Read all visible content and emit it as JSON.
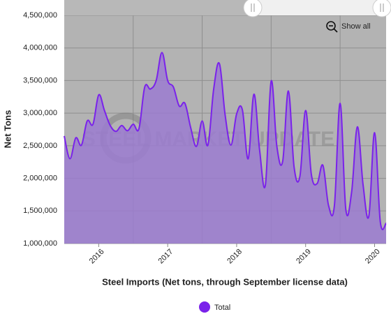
{
  "chart_data": {
    "type": "area",
    "y_label": "Net Tons",
    "x_label": "Steel Imports (Net tons, through September license data)",
    "reset_button": "Show all",
    "watermark": "STEEL MARKET UPDATE",
    "x": [
      2016,
      2016.083,
      2016.167,
      2016.25,
      2016.333,
      2016.417,
      2016.5,
      2016.583,
      2016.667,
      2016.75,
      2016.833,
      2016.917,
      2017,
      2017.083,
      2017.167,
      2017.25,
      2017.333,
      2017.417,
      2017.5,
      2017.583,
      2017.667,
      2017.75,
      2017.833,
      2017.917,
      2018,
      2018.083,
      2018.167,
      2018.25,
      2018.333,
      2018.417,
      2018.5,
      2018.583,
      2018.667,
      2018.75,
      2018.833,
      2018.917,
      2019,
      2019.083,
      2019.167,
      2019.25,
      2019.333,
      2019.417,
      2019.5,
      2019.583,
      2019.667,
      2019.75,
      2019.833,
      2019.917,
      2020,
      2020.083,
      2020.167,
      2020.25,
      2020.333,
      2020.417,
      2020.5,
      2020.583,
      2020.667
    ],
    "series": [
      {
        "name": "Total",
        "color": "#7a22ea",
        "fill": "#9b7bd0",
        "values": [
          2650000,
          2300000,
          2620000,
          2510000,
          2880000,
          2830000,
          3280000,
          3040000,
          2810000,
          2720000,
          2810000,
          2730000,
          2830000,
          2760000,
          3400000,
          3370000,
          3500000,
          3930000,
          3500000,
          3400000,
          3110000,
          3150000,
          2780000,
          2490000,
          2880000,
          2510000,
          3370000,
          3760000,
          2970000,
          2510000,
          2990000,
          3050000,
          2300000,
          3290000,
          2430000,
          1900000,
          3490000,
          2490000,
          2260000,
          3340000,
          2170000,
          2030000,
          3040000,
          2060000,
          1920000,
          2200000,
          1580000,
          1580000,
          3150000,
          1520000,
          1790000,
          2790000,
          1900000,
          1420000,
          2700000,
          1330000,
          1310000
        ]
      }
    ],
    "xlim": [
      2016,
      2020.667
    ],
    "xticks": [
      {
        "value": 2016.5,
        "label": "2016"
      },
      {
        "value": 2017.5,
        "label": "2017"
      },
      {
        "value": 2018.5,
        "label": "2018"
      },
      {
        "value": 2019.5,
        "label": "2019"
      },
      {
        "value": 2020.5,
        "label": "2020"
      }
    ],
    "ylim": [
      1000000,
      4500000
    ],
    "yticks": [
      {
        "value": 1000000,
        "label": "1,000,000"
      },
      {
        "value": 1500000,
        "label": "1,500,000"
      },
      {
        "value": 2000000,
        "label": "2,000,000"
      },
      {
        "value": 2500000,
        "label": "2,500,000"
      },
      {
        "value": 3000000,
        "label": "3,000,000"
      },
      {
        "value": 3500000,
        "label": "3,500,000"
      },
      {
        "value": 4000000,
        "label": "4,000,000"
      },
      {
        "value": 4500000,
        "label": "4,500,000"
      }
    ],
    "grid": true,
    "legend": "bottom"
  }
}
